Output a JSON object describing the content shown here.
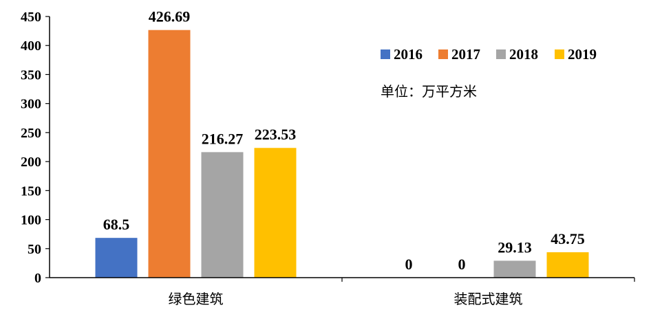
{
  "chart_data": {
    "type": "bar",
    "categories": [
      "绿色建筑",
      "装配式建筑"
    ],
    "series": [
      {
        "name": "2016",
        "values": [
          68.5,
          0
        ],
        "color": "#4472C4"
      },
      {
        "name": "2017",
        "values": [
          426.69,
          0
        ],
        "color": "#ED7D31"
      },
      {
        "name": "2018",
        "values": [
          216.27,
          29.13
        ],
        "color": "#A5A5A5"
      },
      {
        "name": "2019",
        "values": [
          223.53,
          43.75
        ],
        "color": "#FFC000"
      }
    ],
    "data_labels": [
      [
        "68.5",
        "426.69",
        "216.27",
        "223.53"
      ],
      [
        "0",
        "0",
        "29.13",
        "43.75"
      ]
    ],
    "ylim": [
      0,
      450
    ],
    "yticks": [
      0,
      50,
      100,
      150,
      200,
      250,
      300,
      350,
      400,
      450
    ],
    "grid": false,
    "legend_position": "top-right",
    "unit_note": "单位：万平方米"
  }
}
